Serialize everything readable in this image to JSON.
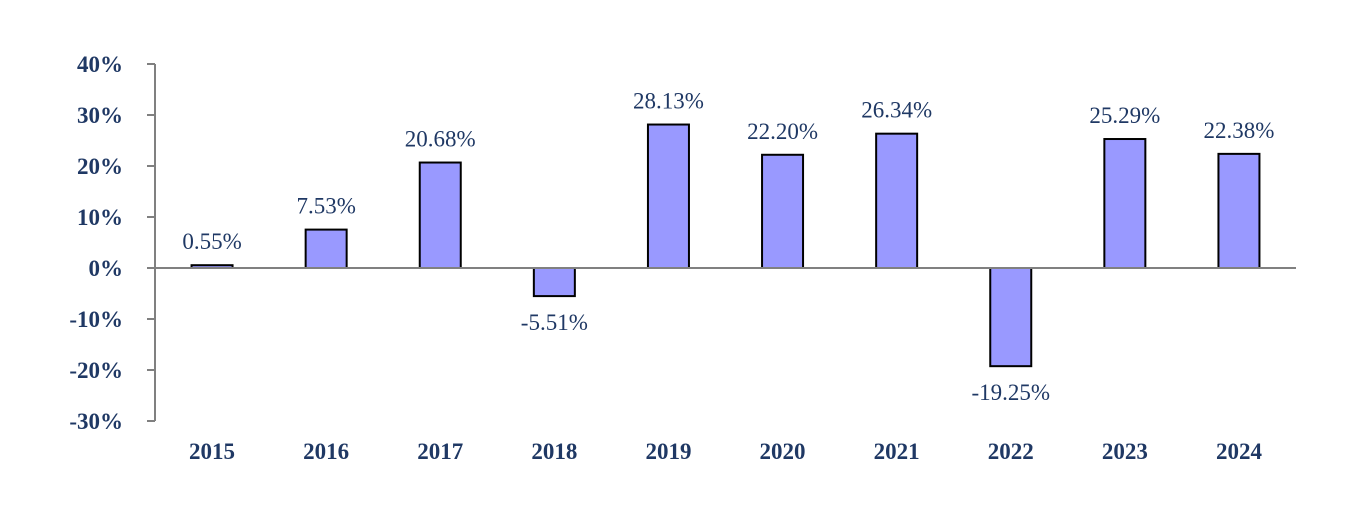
{
  "chart_data": {
    "type": "bar",
    "title": "",
    "xlabel": "",
    "ylabel": "",
    "categories": [
      "2015",
      "2016",
      "2017",
      "2018",
      "2019",
      "2020",
      "2021",
      "2022",
      "2023",
      "2024"
    ],
    "values": [
      0.55,
      7.53,
      20.68,
      -5.51,
      28.13,
      22.2,
      26.34,
      -19.25,
      25.29,
      22.38
    ],
    "value_labels": [
      "0.55%",
      "7.53%",
      "20.68%",
      "-5.51%",
      "28.13%",
      "22.20%",
      "26.34%",
      "-19.25%",
      "25.29%",
      "22.38%"
    ],
    "ylim": [
      -30,
      40
    ],
    "yticks": [
      40,
      30,
      20,
      10,
      0,
      -10,
      -20,
      -30
    ],
    "ytick_labels": [
      "40%",
      "30%",
      "20%",
      "10%",
      "0%",
      "-10%",
      "-20%",
      "-30%"
    ],
    "grid": false,
    "legend": "none",
    "colors": {
      "bar_fill": "#9999ff",
      "bar_stroke": "#000000",
      "axis": "#808080",
      "text": "#1f3864"
    }
  }
}
